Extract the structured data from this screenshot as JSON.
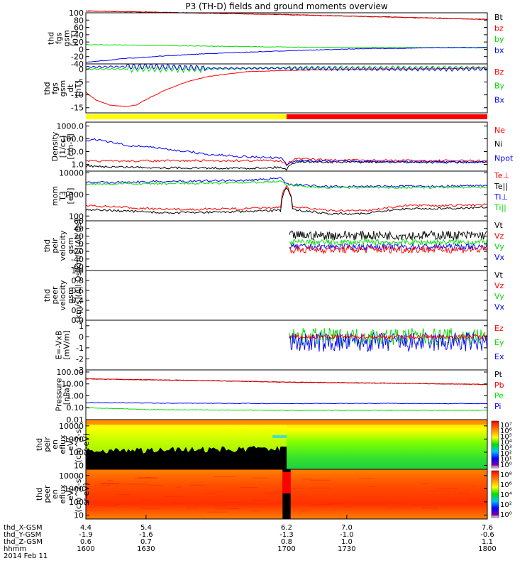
{
  "title": "P3 (TH-D) fields and ground moments overview",
  "date": "2014 Feb 11",
  "colors": {
    "black": "#000000",
    "red": "#ff0000",
    "green": "#00dd00",
    "blue": "#0000ff",
    "yellow": "#ffff00"
  },
  "bar_strip": {
    "segments": [
      {
        "from": 1600,
        "to": 1700,
        "color": "#ffff00"
      },
      {
        "from": 1700,
        "to": 1800,
        "color": "#ff0000"
      }
    ]
  },
  "chart_data": [
    {
      "type": "line",
      "panel": "fgs_gsm",
      "ylabel": [
        "thd",
        "fgs",
        "gsm",
        "[nT]"
      ],
      "ylim": [
        -40,
        100
      ],
      "yticks": [
        "100",
        "80",
        "60",
        "40",
        "20",
        "0",
        "-20",
        "-40"
      ],
      "legend": [
        "Bt",
        "bz",
        "by",
        "bx"
      ],
      "series": [
        {
          "name": "Bt",
          "color": "black",
          "points": [
            [
              1600,
              105
            ],
            [
              1700,
              95
            ],
            [
              1800,
              82
            ]
          ]
        },
        {
          "name": "bz",
          "color": "red",
          "points": [
            [
              1600,
              105
            ],
            [
              1700,
              95
            ],
            [
              1800,
              82
            ]
          ]
        },
        {
          "name": "by",
          "color": "green",
          "points": [
            [
              1600,
              13
            ],
            [
              1700,
              6
            ],
            [
              1800,
              4
            ]
          ]
        },
        {
          "name": "bx",
          "color": "blue",
          "points": [
            [
              1600,
              -36
            ],
            [
              1620,
              -25
            ],
            [
              1640,
              -18
            ],
            [
              1660,
              -12
            ],
            [
              1680,
              -8
            ],
            [
              1700,
              -4
            ],
            [
              1720,
              -1
            ],
            [
              1740,
              2
            ],
            [
              1760,
              3
            ],
            [
              1780,
              5
            ],
            [
              1800,
              5
            ]
          ]
        }
      ]
    },
    {
      "type": "line",
      "panel": "fgs_gsm_detrended",
      "ylabel": [
        "thd",
        "fgs",
        "gsm",
        "dt",
        "[nT]"
      ],
      "ylim": [
        -17,
        2
      ],
      "yticks": [
        "0",
        "-5",
        "-10",
        "-15"
      ],
      "legend": [
        "Bz",
        "By",
        "Bx"
      ],
      "series": [
        {
          "name": "Bz",
          "color": "red",
          "points": [
            [
              1600,
              -9
            ],
            [
              1605,
              -12
            ],
            [
              1612,
              -14
            ],
            [
              1620,
              -14.5
            ],
            [
              1625,
              -14
            ],
            [
              1632,
              -11
            ],
            [
              1640,
              -8
            ],
            [
              1650,
              -5
            ],
            [
              1660,
              -3
            ],
            [
              1670,
              -2
            ],
            [
              1680,
              -1
            ],
            [
              1700,
              -0.5
            ],
            [
              1720,
              -0.3
            ],
            [
              1740,
              0
            ],
            [
              1760,
              0
            ],
            [
              1780,
              0.2
            ],
            [
              1800,
              0.5
            ]
          ]
        },
        {
          "name": "By",
          "color": "green",
          "points": [
            [
              1600,
              0
            ],
            [
              1630,
              0
            ],
            [
              1660,
              0
            ],
            [
              1700,
              0.5
            ],
            [
              1740,
              0.5
            ],
            [
              1800,
              0.5
            ]
          ]
        },
        {
          "name": "Bx",
          "color": "blue",
          "points": [
            [
              1600,
              0.8
            ],
            [
              1630,
              1
            ],
            [
              1660,
              0.3
            ],
            [
              1700,
              0.3
            ],
            [
              1740,
              0
            ],
            [
              1800,
              0
            ]
          ]
        }
      ]
    },
    {
      "type": "line",
      "panel": "density",
      "ylabel": [
        "Density",
        "[1/cc]",
        "[cm-3]"
      ],
      "log": true,
      "ylim": [
        0.3,
        2000
      ],
      "yticks": [
        "1000.0",
        "100.0",
        "10.0",
        "1.0"
      ],
      "legend": [
        "Ne",
        "Ni",
        "Npot"
      ],
      "series": [
        {
          "name": "Ne",
          "color": "red",
          "points": [
            [
              1600,
              1.8
            ],
            [
              1640,
              1.9
            ],
            [
              1680,
              2
            ],
            [
              1697,
              2
            ],
            [
              1700,
              0.9
            ],
            [
              1705,
              2.8
            ],
            [
              1720,
              2.2
            ],
            [
              1760,
              2
            ],
            [
              1800,
              1.9
            ]
          ]
        },
        {
          "name": "Ni",
          "color": "black",
          "points": [
            [
              1600,
              0.7
            ],
            [
              1640,
              0.55
            ],
            [
              1680,
              0.5
            ],
            [
              1697,
              0.6
            ],
            [
              1700,
              0.4
            ],
            [
              1705,
              1.7
            ],
            [
              1720,
              1.5
            ],
            [
              1760,
              1.5
            ],
            [
              1800,
              1.4
            ]
          ]
        },
        {
          "name": "Npot",
          "color": "blue",
          "points": [
            [
              1600,
              70
            ],
            [
              1605,
              90
            ],
            [
              1610,
              60
            ],
            [
              1620,
              30
            ],
            [
              1630,
              25
            ],
            [
              1640,
              15
            ],
            [
              1660,
              6
            ],
            [
              1680,
              4
            ],
            [
              1697,
              3
            ],
            [
              1700,
              1
            ],
            [
              1705,
              2
            ],
            [
              1720,
              1.8
            ],
            [
              1760,
              1.6
            ],
            [
              1800,
              1.5
            ]
          ]
        }
      ]
    },
    {
      "type": "line",
      "panel": "temperature",
      "ylabel": [
        "mom",
        "T3",
        "[eV]"
      ],
      "log": true,
      "ylim": [
        60,
        12000
      ],
      "yticks": [
        "10000",
        "1000",
        "100"
      ],
      "legend": [
        "Te⊥",
        "Te||",
        "Ti⊥",
        "Ti||"
      ],
      "series": [
        {
          "name": "Te⊥",
          "color": "red",
          "points": [
            [
              1600,
              300
            ],
            [
              1640,
              200
            ],
            [
              1680,
              220
            ],
            [
              1697,
              250
            ],
            [
              1700,
              2500
            ],
            [
              1703,
              280
            ],
            [
              1720,
              180
            ],
            [
              1740,
              180
            ],
            [
              1760,
              300
            ],
            [
              1780,
              300
            ],
            [
              1800,
              350
            ]
          ]
        },
        {
          "name": "Te||",
          "color": "black",
          "points": [
            [
              1600,
              200
            ],
            [
              1640,
              140
            ],
            [
              1680,
              160
            ],
            [
              1697,
              180
            ],
            [
              1700,
              2200
            ],
            [
              1703,
              200
            ],
            [
              1720,
              130
            ],
            [
              1740,
              130
            ],
            [
              1760,
              220
            ],
            [
              1780,
              220
            ],
            [
              1800,
              260
            ]
          ]
        },
        {
          "name": "Ti⊥",
          "color": "blue",
          "points": [
            [
              1600,
              3500
            ],
            [
              1640,
              4000
            ],
            [
              1680,
              4500
            ],
            [
              1697,
              5500
            ],
            [
              1700,
              3000
            ],
            [
              1720,
              2300
            ],
            [
              1760,
              2400
            ],
            [
              1800,
              2500
            ]
          ]
        },
        {
          "name": "Ti||",
          "color": "green",
          "points": [
            [
              1600,
              3000
            ],
            [
              1640,
              3200
            ],
            [
              1680,
              3500
            ],
            [
              1697,
              4000
            ],
            [
              1700,
              2800
            ],
            [
              1720,
              2000
            ],
            [
              1760,
              2100
            ],
            [
              1800,
              2200
            ]
          ]
        }
      ]
    },
    {
      "type": "line",
      "panel": "peir_velocity",
      "ylabel": [
        "thd",
        "peir",
        "velocity",
        "gsm",
        "[km/s](All Qs)"
      ],
      "ylim": [
        -70,
        60
      ],
      "yticks": [
        "60",
        "40",
        "20",
        "0",
        "-20",
        "-40",
        "-60"
      ],
      "legend": [
        "Vt",
        "Vz",
        "Vy",
        "Vx"
      ],
      "noisy": {
        "from": 1700,
        "to": 1800
      },
      "series": [
        {
          "name": "Vt",
          "color": "black",
          "mean": 22,
          "amp": 12
        },
        {
          "name": "Vy",
          "color": "green",
          "mean": 4,
          "amp": 8
        },
        {
          "name": "Vx",
          "color": "blue",
          "mean": -8,
          "amp": 8
        },
        {
          "name": "Vz",
          "color": "red",
          "mean": -15,
          "amp": 10
        }
      ]
    },
    {
      "type": "line",
      "panel": "peer_velocity",
      "ylabel": [
        "thd",
        "peer",
        "velocity",
        "gsm",
        "[km/s](All Qs)"
      ],
      "ylim": [
        0,
        1
      ],
      "yticks": [
        "1.0",
        "0.8",
        "0.6",
        "0.4",
        "0.2",
        "0.0"
      ],
      "legend": [
        "Vt",
        "Vz",
        "Vy",
        "Vx"
      ],
      "series": []
    },
    {
      "type": "line",
      "panel": "e_field",
      "ylabel": [
        "E=-VxB",
        "[mV/m]"
      ],
      "ylim": [
        -3,
        1.5
      ],
      "yticks": [
        "1",
        "0",
        "-1",
        "-2",
        "-3"
      ],
      "legend": [
        "Ez",
        "Ey",
        "Ex"
      ],
      "noisy": {
        "from": 1700,
        "to": 1800
      },
      "series": [
        {
          "name": "Ey",
          "color": "green",
          "mean": 0,
          "amp": 0.8
        },
        {
          "name": "Ex",
          "color": "blue",
          "mean": -0.5,
          "amp": 0.9
        },
        {
          "name": "Ez",
          "color": "red",
          "mean": 0,
          "amp": 0.2
        }
      ]
    },
    {
      "type": "line",
      "panel": "pressure",
      "ylabel": [
        "Pressure",
        "[nPa]"
      ],
      "log": true,
      "ylim": [
        0.01,
        150
      ],
      "yticks": [
        "100.00",
        "10.00",
        "1.00",
        "0.10",
        "0.01"
      ],
      "legend": [
        "Pt",
        "Pb",
        "Pe",
        "Pi"
      ],
      "series": [
        {
          "name": "Pt",
          "color": "black",
          "points": [
            [
              1600,
              26
            ],
            [
              1700,
              14
            ],
            [
              1800,
              9
            ]
          ]
        },
        {
          "name": "Pb",
          "color": "red",
          "points": [
            [
              1600,
              26
            ],
            [
              1700,
              14
            ],
            [
              1800,
              9
            ]
          ]
        },
        {
          "name": "Pi",
          "color": "blue",
          "points": [
            [
              1600,
              0.27
            ],
            [
              1640,
              0.24
            ],
            [
              1680,
              0.23
            ],
            [
              1700,
              0.22
            ],
            [
              1740,
              0.23
            ],
            [
              1800,
              0.22
            ]
          ]
        },
        {
          "name": "Pe",
          "color": "green",
          "points": [
            [
              1600,
              0.1
            ],
            [
              1630,
              0.07
            ],
            [
              1660,
              0.065
            ],
            [
              1700,
              0.06
            ],
            [
              1740,
              0.06
            ],
            [
              1800,
              0.06
            ]
          ]
        }
      ]
    },
    {
      "type": "heatmap",
      "panel": "peir_spectrogram",
      "ylabel": [
        "thd",
        "peir",
        "en",
        "eflux",
        "eV/",
        "(cm^2-s-",
        "sr-eV)"
      ],
      "log": true,
      "ylim": [
        5,
        30000
      ],
      "yticks": [
        "10000",
        "1000",
        "100",
        "10"
      ],
      "colorbar_ticks": [
        "10⁷",
        "10⁶",
        "10⁵",
        "10⁴",
        "10³",
        "10²",
        "10¹",
        "10⁰"
      ]
    },
    {
      "type": "heatmap",
      "panel": "peer_spectrogram",
      "ylabel": [
        "thd",
        "peer",
        "en",
        "eflux",
        "eV/",
        "(cm^2-s-",
        "sr-eV)"
      ],
      "log": true,
      "ylim": [
        5,
        30000
      ],
      "yticks": [
        "10000",
        "1000",
        "100",
        "10"
      ],
      "colorbar_ticks": [
        "10⁸",
        "10⁶",
        "10⁴",
        "10²",
        "10⁰"
      ]
    }
  ],
  "xaxis": {
    "row_labels": [
      "thd_X-GSM",
      "thd_Y-GSM",
      "thd_Z-GSM",
      "hhmm"
    ],
    "columns": [
      {
        "x": 1600,
        "values": [
          "4.4",
          "-1.9",
          "0.6",
          "1600"
        ]
      },
      {
        "x": 1630,
        "values": [
          "5.4",
          "-1.6",
          "0.7",
          "1630"
        ]
      },
      {
        "x": 1700,
        "values": [
          "6.2",
          "-1.3",
          "0.8",
          "1700"
        ]
      },
      {
        "x": 1730,
        "values": [
          "7.0",
          "-1.0",
          "1.0",
          "1730"
        ]
      },
      {
        "x": 1800,
        "values": [
          "7.6",
          "-0.6",
          "1.1",
          "1800"
        ]
      }
    ]
  }
}
